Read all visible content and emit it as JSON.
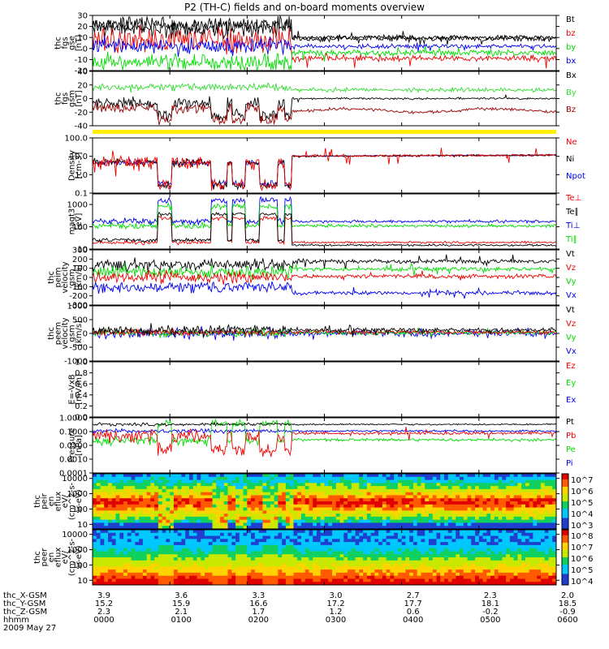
{
  "title": "P2 (TH-C) fields and on-board moments overview",
  "colors": {
    "black": "#000000",
    "red": "#ee0000",
    "green": "#00dd00",
    "blue": "#0000ee",
    "darkred": "#990000",
    "lightgreen": "#33dd33",
    "yellow": "#ffee00"
  },
  "chart_data": {
    "type": "line",
    "x_time_labels": [
      "0000",
      "0100",
      "0200",
      "0300",
      "0400",
      "0500",
      "0600"
    ],
    "panels": [
      {
        "id": "fgs_gse",
        "ylabel": [
          "thc",
          "fgs",
          "gse",
          "[nT]"
        ],
        "yrange": [
          -20,
          30
        ],
        "ticks": [
          "30",
          "20",
          "10",
          "0",
          "-10",
          "-20"
        ],
        "series": [
          {
            "name": "Bt",
            "color": "#000000"
          },
          {
            "name": "bz",
            "color": "#ee0000"
          },
          {
            "name": "by",
            "color": "#00dd00"
          },
          {
            "name": "bx",
            "color": "#0000ee"
          }
        ]
      },
      {
        "id": "fgs_gsm",
        "ylabel": [
          "thc",
          "fgs",
          "gsm",
          "[nT]"
        ],
        "yrange": [
          -50,
          40
        ],
        "ticks": [
          "40",
          "20",
          "0",
          "-20",
          "-40"
        ],
        "series": [
          {
            "name": "Bx",
            "color": "#000000"
          },
          {
            "name": "By",
            "color": "#33dd33"
          },
          {
            "name": "Bz",
            "color": "#990000"
          }
        ]
      },
      {
        "id": "density",
        "ylabel": [
          "Density",
          "[cm-3]"
        ],
        "yscale": "log",
        "yrange": [
          0.1,
          100
        ],
        "ticks": [
          "100.0",
          "10.0",
          "1.0",
          "0.1"
        ],
        "series": [
          {
            "name": "Ne",
            "color": "#ee0000"
          },
          {
            "name": "Ni",
            "color": "#000000"
          },
          {
            "name": "Npot",
            "color": "#0000ee"
          }
        ]
      },
      {
        "id": "temperature",
        "ylabel": [
          "magt3",
          "[eV]"
        ],
        "yscale": "log",
        "yrange": [
          10,
          3000
        ],
        "ticks": [
          "1000",
          "100",
          "10"
        ],
        "series": [
          {
            "name": "Te⊥",
            "color": "#ee0000"
          },
          {
            "name": "Te∥",
            "color": "#000000"
          },
          {
            "name": "Ti⊥",
            "color": "#0000ee"
          },
          {
            "name": "Ti∥",
            "color": "#00dd00"
          }
        ]
      },
      {
        "id": "peim_velocity",
        "ylabel": [
          "thc",
          "peim",
          "velocity",
          "gsm",
          "[km/s]"
        ],
        "yrange": [
          -300,
          300
        ],
        "ticks": [
          "300",
          "200",
          "100",
          "0",
          "-100",
          "-200",
          "-300"
        ],
        "series": [
          {
            "name": "Vt",
            "color": "#000000"
          },
          {
            "name": "Vz",
            "color": "#ee0000"
          },
          {
            "name": "Vy",
            "color": "#00dd00"
          },
          {
            "name": "Vx",
            "color": "#0000ee"
          }
        ]
      },
      {
        "id": "peem_velocity",
        "ylabel": [
          "thc",
          "peem",
          "velocity",
          "gsm",
          "[km/s]"
        ],
        "yrange": [
          -1000,
          1000
        ],
        "ticks": [
          "1000",
          "500",
          "0",
          "-500",
          "-1000"
        ],
        "series": [
          {
            "name": "Vt",
            "color": "#000000"
          },
          {
            "name": "Vz",
            "color": "#ee0000"
          },
          {
            "name": "Vy",
            "color": "#00dd00"
          },
          {
            "name": "Vx",
            "color": "#0000ee"
          }
        ]
      },
      {
        "id": "efield",
        "ylabel": [
          "E=-VxB",
          "[mV/m]"
        ],
        "yrange": [
          0,
          1
        ],
        "ticks": [
          "1.0",
          "0.8",
          "0.6",
          "0.4",
          "0.2",
          "0.0"
        ],
        "series": [
          {
            "name": "Ez",
            "color": "#ee0000"
          },
          {
            "name": "Ey",
            "color": "#00dd00"
          },
          {
            "name": "Ex",
            "color": "#0000ee"
          }
        ]
      },
      {
        "id": "pressure",
        "ylabel": [
          "Pressure",
          "[nPa]"
        ],
        "yscale": "log",
        "yrange": [
          0.0001,
          1
        ],
        "ticks": [
          "1.0000",
          "0.1000",
          "0.0100",
          "0.0010",
          "0.0001"
        ],
        "series": [
          {
            "name": "Pt",
            "color": "#000000"
          },
          {
            "name": "Pb",
            "color": "#ee0000"
          },
          {
            "name": "Pe",
            "color": "#00dd00"
          },
          {
            "name": "Pi",
            "color": "#0000ee"
          }
        ]
      }
    ],
    "spectrograms": [
      {
        "id": "peir_en_eflux",
        "ylabel": [
          "thc",
          "peir",
          "en",
          "eflux",
          "eV/",
          "(cm^2-s-",
          "sr-eV)"
        ],
        "yscale": "log",
        "ticks": [
          "10000",
          "1000",
          "100",
          "10"
        ],
        "colorbar_ticks": [
          "10^7",
          "10^6",
          "10^5",
          "10^4",
          "10^3"
        ]
      },
      {
        "id": "peer_en_eflux",
        "ylabel": [
          "thc",
          "peer",
          "en",
          "eflux",
          "eV/",
          "(cm^2-s-",
          "sr-eV)"
        ],
        "yscale": "log",
        "ticks": [
          "10000",
          "1000",
          "100",
          "10"
        ],
        "colorbar_ticks": [
          "10^8",
          "10^7",
          "10^6",
          "10^5",
          "10^4"
        ]
      }
    ],
    "ephemeris": {
      "labels": [
        "thc_X-GSM",
        "thc_Y-GSM",
        "thc_Z-GSM",
        "hhmm"
      ],
      "columns": [
        [
          "3.9",
          "15.2",
          "2.3",
          "0000"
        ],
        [
          "3.6",
          "15.9",
          "2.1",
          "0100"
        ],
        [
          "3.3",
          "16.6",
          "1.7",
          "0200"
        ],
        [
          "3.0",
          "17.2",
          "1.2",
          "0300"
        ],
        [
          "2.7",
          "17.7",
          "0.6",
          "0400"
        ],
        [
          "2.3",
          "18.1",
          "-0.2",
          "0500"
        ],
        [
          "2.0",
          "18.5",
          "-0.9",
          "0600"
        ]
      ],
      "date": "2009 May 27"
    }
  }
}
